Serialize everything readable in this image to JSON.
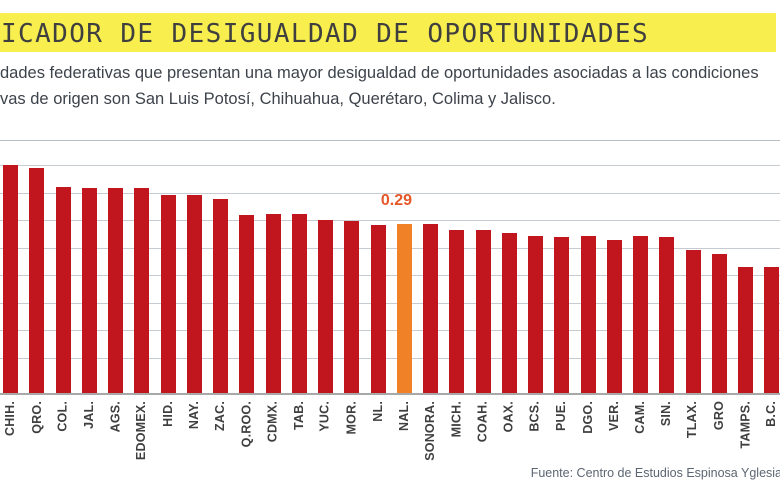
{
  "header": {
    "title": "ICADOR DE DESIGUALDAD DE OPORTUNIDADES",
    "subtitle_line1": "dades federativas que presentan una mayor desigualdad de oportunidades asociadas a las condiciones",
    "subtitle_line2": "vas de origen son San Luis Potosí, Chihuahua, Querétaro, Colima y Jalisco."
  },
  "footer": {
    "source": "Fuente: Centro de Estudios Espinosa Yglesia"
  },
  "colors": {
    "banner": "#f8ee4e",
    "bar": "#c1161d",
    "highlight_bar": "#f08127",
    "annotation": "#e4582a",
    "grid": "#c6ccd2",
    "axis_line": "#a8a8a8",
    "title_text": "#3f3f3f",
    "subtitle_text": "#3d434b",
    "label_text": "#3f3f3f",
    "source_text": "#5c6672"
  },
  "chart_data": {
    "type": "bar",
    "title": "ICADOR DE DESIGUALDAD DE OPORTUNIDADES",
    "categories": [
      "CHIH.",
      "QRO.",
      "COL.",
      "JAL.",
      "AGS.",
      "EDOMEX.",
      "HID.",
      "NAY.",
      "ZAC.",
      "Q.ROO.",
      "CDMX.",
      "TAB.",
      "YUC.",
      "MOR.",
      "NL.",
      "NAL.",
      "SONORA.",
      "MICH.",
      "COAH.",
      "OAX.",
      "BCS.",
      "PUE.",
      "DGO.",
      "VER.",
      "CAM.",
      "SIN.",
      "TLAX.",
      "GRO",
      "TAMPS.",
      "B.C."
    ],
    "values": [
      0.39,
      0.385,
      0.353,
      0.351,
      0.351,
      0.351,
      0.34,
      0.34,
      0.333,
      0.306,
      0.307,
      0.307,
      0.296,
      0.295,
      0.289,
      0.29,
      0.29,
      0.28,
      0.28,
      0.275,
      0.269,
      0.268,
      0.269,
      0.262,
      0.27,
      0.268,
      0.246,
      0.238,
      0.217,
      0.216
    ],
    "highlight_category": "NAL.",
    "annotation": {
      "text": "0.29",
      "category": "NAL."
    },
    "xlabel": "",
    "ylabel": "",
    "ylim": [
      0,
      0.435
    ],
    "grid": true,
    "legend": false,
    "source": "Fuente: Centro de Estudios Espinosa Yglesia"
  }
}
